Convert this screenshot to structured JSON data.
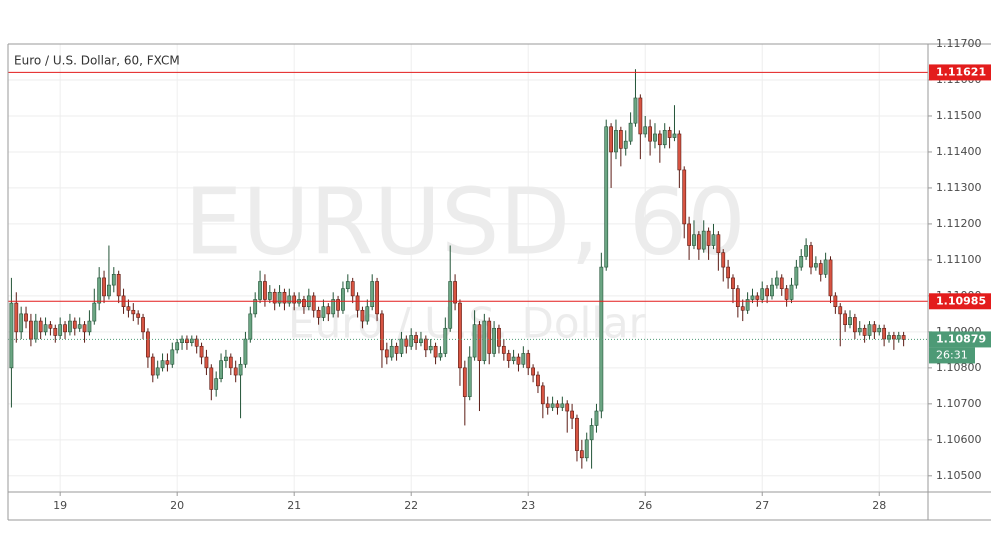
{
  "chart_data": {
    "type": "candlestick",
    "title": "Euro / U.S. Dollar, 60, FXCM",
    "watermark": {
      "symbol": "EURUSD, 60",
      "description": "Euro / U.S. Dollar"
    },
    "up_color": "#6ba583",
    "down_color": "#d75442",
    "xlim": [
      -10.7,
      178
    ],
    "ylim": [
      1.10455,
      1.117
    ],
    "xticks": [
      {
        "value": 0,
        "label": "19"
      },
      {
        "value": 24,
        "label": "20"
      },
      {
        "value": 48,
        "label": "21"
      },
      {
        "value": 72,
        "label": "22"
      },
      {
        "value": 96,
        "label": "23"
      },
      {
        "value": 120,
        "label": "26"
      },
      {
        "value": 144,
        "label": "27"
      },
      {
        "value": 168,
        "label": "28"
      }
    ],
    "yticks": [
      {
        "value": 1.117,
        "label": "1.11700"
      },
      {
        "value": 1.116,
        "label": "1.11600"
      },
      {
        "value": 1.115,
        "label": "1.11500"
      },
      {
        "value": 1.114,
        "label": "1.11400"
      },
      {
        "value": 1.113,
        "label": "1.11300"
      },
      {
        "value": 1.112,
        "label": "1.11200"
      },
      {
        "value": 1.111,
        "label": "1.11100"
      },
      {
        "value": 1.11,
        "label": "1.11000"
      },
      {
        "value": 1.109,
        "label": "1.10900"
      },
      {
        "value": 1.108,
        "label": "1.10800"
      },
      {
        "value": 1.107,
        "label": "1.10700"
      },
      {
        "value": 1.106,
        "label": "1.10600"
      },
      {
        "value": 1.105,
        "label": "1.10500"
      }
    ],
    "grid": true,
    "levels": [
      1.11621,
      1.10985
    ],
    "level_color": "#e31c1c",
    "last_price": 1.10879,
    "last_color": "#4d9a76",
    "countdown": "26:31",
    "x": [
      -10,
      -9,
      -8,
      -7,
      -6,
      -5,
      -4,
      -3,
      -2,
      -1,
      0,
      1,
      2,
      3,
      4,
      5,
      6,
      7,
      8,
      9,
      10,
      11,
      12,
      13,
      14,
      15,
      16,
      17,
      18,
      19,
      20,
      21,
      22,
      23,
      24,
      25,
      26,
      27,
      28,
      29,
      30,
      31,
      32,
      33,
      34,
      35,
      36,
      37,
      38,
      39,
      40,
      41,
      42,
      43,
      44,
      45,
      46,
      47,
      48,
      49,
      50,
      51,
      52,
      53,
      54,
      55,
      56,
      57,
      58,
      59,
      60,
      61,
      62,
      63,
      64,
      65,
      66,
      67,
      68,
      69,
      70,
      71,
      72,
      73,
      74,
      75,
      76,
      77,
      78,
      79,
      80,
      81,
      82,
      83,
      84,
      85,
      86,
      87,
      88,
      89,
      90,
      91,
      92,
      93,
      94,
      95,
      96,
      97,
      98,
      99,
      100,
      101,
      102,
      103,
      104,
      105,
      106,
      107,
      108,
      109,
      110,
      111,
      112,
      113,
      114,
      115,
      116,
      117,
      118,
      119,
      120,
      121,
      122,
      123,
      124,
      125,
      126,
      127,
      128,
      129,
      130,
      131,
      132,
      133,
      134,
      135,
      136,
      137,
      138,
      139,
      140,
      141,
      142,
      143,
      144,
      145,
      146,
      147,
      148,
      149,
      150,
      151,
      152,
      153,
      154,
      155,
      156,
      157,
      158,
      159,
      160,
      161,
      162,
      163,
      164,
      165,
      166,
      167,
      168,
      169,
      170,
      171,
      172,
      173
    ],
    "ohlc": [
      [
        1.108,
        1.1105,
        1.1069,
        1.1098
      ],
      [
        1.1098,
        1.1101,
        1.1087,
        1.109
      ],
      [
        1.109,
        1.1097,
        1.1088,
        1.1095
      ],
      [
        1.1095,
        1.1097,
        1.1091,
        1.1093
      ],
      [
        1.1093,
        1.1095,
        1.1086,
        1.1088
      ],
      [
        1.1088,
        1.1095,
        1.1087,
        1.1093
      ],
      [
        1.1093,
        1.1094,
        1.1088,
        1.109
      ],
      [
        1.109,
        1.1094,
        1.1089,
        1.1092
      ],
      [
        1.1092,
        1.1093,
        1.1089,
        1.1091
      ],
      [
        1.1091,
        1.1092,
        1.1087,
        1.1089
      ],
      [
        1.1089,
        1.1094,
        1.1088,
        1.1092
      ],
      [
        1.1092,
        1.1093,
        1.1088,
        1.109
      ],
      [
        1.109,
        1.1095,
        1.1089,
        1.1093
      ],
      [
        1.1093,
        1.1094,
        1.1089,
        1.1091
      ],
      [
        1.1091,
        1.1094,
        1.109,
        1.1092
      ],
      [
        1.1092,
        1.1093,
        1.1087,
        1.109
      ],
      [
        1.109,
        1.1096,
        1.1089,
        1.1093
      ],
      [
        1.1093,
        1.1102,
        1.1092,
        1.1098
      ],
      [
        1.1098,
        1.1108,
        1.1096,
        1.1105
      ],
      [
        1.1105,
        1.1107,
        1.1098,
        1.11
      ],
      [
        1.11,
        1.1114,
        1.1099,
        1.1103
      ],
      [
        1.1103,
        1.1108,
        1.1101,
        1.1106
      ],
      [
        1.1106,
        1.1107,
        1.1098,
        1.11
      ],
      [
        1.11,
        1.1102,
        1.1095,
        1.1097
      ],
      [
        1.1097,
        1.1099,
        1.1094,
        1.1096
      ],
      [
        1.1096,
        1.1098,
        1.1093,
        1.1095
      ],
      [
        1.1095,
        1.1096,
        1.1092,
        1.1094
      ],
      [
        1.1094,
        1.1095,
        1.1088,
        1.109
      ],
      [
        1.109,
        1.1091,
        1.108,
        1.1083
      ],
      [
        1.1083,
        1.1084,
        1.1076,
        1.1078
      ],
      [
        1.1078,
        1.1082,
        1.1077,
        1.108
      ],
      [
        1.108,
        1.1084,
        1.1079,
        1.1082
      ],
      [
        1.1082,
        1.1084,
        1.1079,
        1.1081
      ],
      [
        1.1081,
        1.1087,
        1.108,
        1.1085
      ],
      [
        1.1085,
        1.1088,
        1.1084,
        1.1087
      ],
      [
        1.1087,
        1.1089,
        1.1085,
        1.1088
      ],
      [
        1.1088,
        1.1089,
        1.1085,
        1.1087
      ],
      [
        1.1087,
        1.1089,
        1.1086,
        1.1088
      ],
      [
        1.1088,
        1.1089,
        1.1084,
        1.1086
      ],
      [
        1.1086,
        1.1087,
        1.1081,
        1.1083
      ],
      [
        1.1083,
        1.1085,
        1.1078,
        1.108
      ],
      [
        1.108,
        1.1081,
        1.1071,
        1.1074
      ],
      [
        1.1074,
        1.1079,
        1.1072,
        1.1077
      ],
      [
        1.1077,
        1.1084,
        1.1076,
        1.1082
      ],
      [
        1.1082,
        1.1085,
        1.108,
        1.1083
      ],
      [
        1.1083,
        1.1084,
        1.1078,
        1.108
      ],
      [
        1.108,
        1.1082,
        1.1076,
        1.1078
      ],
      [
        1.1078,
        1.1083,
        1.1066,
        1.1081
      ],
      [
        1.1081,
        1.109,
        1.108,
        1.1088
      ],
      [
        1.1088,
        1.1097,
        1.1087,
        1.1095
      ],
      [
        1.1095,
        1.1101,
        1.1094,
        1.1099
      ],
      [
        1.1099,
        1.1107,
        1.1098,
        1.1104
      ],
      [
        1.1104,
        1.1106,
        1.1097,
        1.1099
      ],
      [
        1.1099,
        1.1103,
        1.1098,
        1.1101
      ],
      [
        1.1101,
        1.1102,
        1.1096,
        1.1098
      ],
      [
        1.1098,
        1.1103,
        1.1097,
        1.1101
      ],
      [
        1.1101,
        1.1102,
        1.1096,
        1.1098
      ],
      [
        1.1098,
        1.1102,
        1.1097,
        1.11
      ],
      [
        1.11,
        1.1101,
        1.1096,
        1.1098
      ],
      [
        1.1098,
        1.1101,
        1.1097,
        1.1099
      ],
      [
        1.1099,
        1.11,
        1.1095,
        1.1097
      ],
      [
        1.1097,
        1.1102,
        1.1096,
        1.11
      ],
      [
        1.11,
        1.1101,
        1.1094,
        1.1096
      ],
      [
        1.1096,
        1.1097,
        1.1092,
        1.1094
      ],
      [
        1.1094,
        1.1099,
        1.1093,
        1.1097
      ],
      [
        1.1097,
        1.1098,
        1.1093,
        1.1095
      ],
      [
        1.1095,
        1.1101,
        1.1094,
        1.1099
      ],
      [
        1.1099,
        1.11,
        1.1094,
        1.1096
      ],
      [
        1.1096,
        1.1104,
        1.1095,
        1.1102
      ],
      [
        1.1102,
        1.1106,
        1.1101,
        1.1104
      ],
      [
        1.1104,
        1.1105,
        1.1098,
        1.11
      ],
      [
        1.11,
        1.1101,
        1.1094,
        1.1096
      ],
      [
        1.1096,
        1.1097,
        1.1091,
        1.1093
      ],
      [
        1.1093,
        1.1099,
        1.1092,
        1.1097
      ],
      [
        1.1097,
        1.1106,
        1.1096,
        1.1104
      ],
      [
        1.1104,
        1.1105,
        1.1093,
        1.1095
      ],
      [
        1.1095,
        1.1096,
        1.108,
        1.1085
      ],
      [
        1.1085,
        1.1087,
        1.1081,
        1.1083
      ],
      [
        1.1083,
        1.1088,
        1.1082,
        1.1086
      ],
      [
        1.1086,
        1.1087,
        1.1082,
        1.1084
      ],
      [
        1.1084,
        1.109,
        1.1083,
        1.1088
      ],
      [
        1.1088,
        1.1089,
        1.1084,
        1.1086
      ],
      [
        1.1086,
        1.1091,
        1.1085,
        1.1089
      ],
      [
        1.1089,
        1.109,
        1.1085,
        1.1087
      ],
      [
        1.1087,
        1.109,
        1.1086,
        1.1088
      ],
      [
        1.1088,
        1.1089,
        1.1083,
        1.1085
      ],
      [
        1.1085,
        1.1088,
        1.1084,
        1.1086
      ],
      [
        1.1086,
        1.1087,
        1.1081,
        1.1083
      ],
      [
        1.1083,
        1.1086,
        1.1082,
        1.1084
      ],
      [
        1.1084,
        1.1094,
        1.1083,
        1.1091
      ],
      [
        1.1091,
        1.1114,
        1.109,
        1.1104
      ],
      [
        1.1104,
        1.1106,
        1.1096,
        1.1098
      ],
      [
        1.1098,
        1.1099,
        1.1075,
        1.108
      ],
      [
        1.108,
        1.1082,
        1.1064,
        1.1072
      ],
      [
        1.1072,
        1.1086,
        1.1071,
        1.1083
      ],
      [
        1.1083,
        1.1096,
        1.1082,
        1.1092
      ],
      [
        1.1092,
        1.1093,
        1.1068,
        1.1082
      ],
      [
        1.1082,
        1.1095,
        1.1081,
        1.1093
      ],
      [
        1.1093,
        1.1094,
        1.1081,
        1.1084
      ],
      [
        1.1084,
        1.1093,
        1.1083,
        1.1091
      ],
      [
        1.1091,
        1.1092,
        1.1084,
        1.1086
      ],
      [
        1.1086,
        1.1088,
        1.1082,
        1.1084
      ],
      [
        1.1084,
        1.1085,
        1.108,
        1.1082
      ],
      [
        1.1082,
        1.1085,
        1.1081,
        1.1083
      ],
      [
        1.1083,
        1.1084,
        1.1079,
        1.1081
      ],
      [
        1.1081,
        1.1086,
        1.108,
        1.1084
      ],
      [
        1.1084,
        1.1085,
        1.1078,
        1.108
      ],
      [
        1.108,
        1.1081,
        1.1076,
        1.1078
      ],
      [
        1.1078,
        1.1079,
        1.1073,
        1.1075
      ],
      [
        1.1075,
        1.1076,
        1.1066,
        1.107
      ],
      [
        1.107,
        1.1072,
        1.1067,
        1.1069
      ],
      [
        1.1069,
        1.1072,
        1.1068,
        1.107
      ],
      [
        1.107,
        1.1071,
        1.1067,
        1.1069
      ],
      [
        1.1069,
        1.1072,
        1.1068,
        1.107
      ],
      [
        1.107,
        1.1071,
        1.1062,
        1.1068
      ],
      [
        1.1068,
        1.107,
        1.1063,
        1.1066
      ],
      [
        1.1066,
        1.1067,
        1.1054,
        1.1057
      ],
      [
        1.1057,
        1.106,
        1.1052,
        1.1055
      ],
      [
        1.1055,
        1.1062,
        1.1054,
        1.106
      ],
      [
        1.106,
        1.1066,
        1.1052,
        1.1064
      ],
      [
        1.1064,
        1.107,
        1.1062,
        1.1068
      ],
      [
        1.1068,
        1.1112,
        1.1066,
        1.1108
      ],
      [
        1.1108,
        1.1149,
        1.1107,
        1.1147
      ],
      [
        1.1147,
        1.1148,
        1.113,
        1.114
      ],
      [
        1.114,
        1.1149,
        1.1138,
        1.1146
      ],
      [
        1.1146,
        1.1147,
        1.1136,
        1.1141
      ],
      [
        1.1141,
        1.1146,
        1.1139,
        1.1143
      ],
      [
        1.1143,
        1.1151,
        1.1142,
        1.1148
      ],
      [
        1.1148,
        1.1163,
        1.1147,
        1.1155
      ],
      [
        1.1155,
        1.1156,
        1.1138,
        1.1145
      ],
      [
        1.1145,
        1.115,
        1.1144,
        1.1147
      ],
      [
        1.1147,
        1.1149,
        1.1139,
        1.1143
      ],
      [
        1.1143,
        1.1148,
        1.1141,
        1.1145
      ],
      [
        1.1145,
        1.1146,
        1.1137,
        1.1142
      ],
      [
        1.1142,
        1.1148,
        1.1141,
        1.1146
      ],
      [
        1.1146,
        1.1147,
        1.1141,
        1.1144
      ],
      [
        1.1144,
        1.1153,
        1.1143,
        1.1145
      ],
      [
        1.1145,
        1.1146,
        1.113,
        1.1135
      ],
      [
        1.1135,
        1.1136,
        1.1116,
        1.112
      ],
      [
        1.112,
        1.1122,
        1.111,
        1.1114
      ],
      [
        1.1114,
        1.1121,
        1.1113,
        1.1117
      ],
      [
        1.1117,
        1.1118,
        1.111,
        1.1113
      ],
      [
        1.1113,
        1.1121,
        1.1112,
        1.1118
      ],
      [
        1.1118,
        1.1119,
        1.111,
        1.1114
      ],
      [
        1.1114,
        1.112,
        1.1113,
        1.1117
      ],
      [
        1.1117,
        1.1118,
        1.1107,
        1.1112
      ],
      [
        1.1112,
        1.1113,
        1.1104,
        1.1108
      ],
      [
        1.1108,
        1.111,
        1.1102,
        1.1105
      ],
      [
        1.1105,
        1.1106,
        1.1098,
        1.1102
      ],
      [
        1.1102,
        1.1103,
        1.1094,
        1.1097
      ],
      [
        1.1097,
        1.1099,
        1.1093,
        1.1096
      ],
      [
        1.1096,
        1.1101,
        1.1095,
        1.1099
      ],
      [
        1.1099,
        1.1102,
        1.1098,
        1.11
      ],
      [
        1.11,
        1.1101,
        1.1097,
        1.1099
      ],
      [
        1.1099,
        1.1104,
        1.1098,
        1.1102
      ],
      [
        1.1102,
        1.1103,
        1.1098,
        1.11
      ],
      [
        1.11,
        1.1105,
        1.1099,
        1.1103
      ],
      [
        1.1103,
        1.1107,
        1.1102,
        1.1105
      ],
      [
        1.1105,
        1.1106,
        1.11,
        1.1102
      ],
      [
        1.1102,
        1.1103,
        1.1097,
        1.1099
      ],
      [
        1.1099,
        1.1105,
        1.1098,
        1.1103
      ],
      [
        1.1103,
        1.111,
        1.1102,
        1.1108
      ],
      [
        1.1108,
        1.1113,
        1.1107,
        1.1111
      ],
      [
        1.1111,
        1.1116,
        1.111,
        1.1114
      ],
      [
        1.1114,
        1.1115,
        1.1106,
        1.1108
      ],
      [
        1.1108,
        1.1111,
        1.1107,
        1.1109
      ],
      [
        1.1109,
        1.111,
        1.1104,
        1.1106
      ],
      [
        1.1106,
        1.1112,
        1.1105,
        1.111
      ],
      [
        1.111,
        1.1111,
        1.1098,
        1.11
      ],
      [
        1.11,
        1.1101,
        1.1095,
        1.1097
      ],
      [
        1.1097,
        1.1098,
        1.1086,
        1.1095
      ],
      [
        1.1095,
        1.1096,
        1.109,
        1.1092
      ],
      [
        1.1092,
        1.1096,
        1.1091,
        1.1094
      ],
      [
        1.1094,
        1.1095,
        1.1088,
        1.109
      ],
      [
        1.109,
        1.1093,
        1.1089,
        1.1091
      ],
      [
        1.1091,
        1.1092,
        1.1087,
        1.1089
      ],
      [
        1.1089,
        1.1093,
        1.1088,
        1.1092
      ],
      [
        1.1092,
        1.1093,
        1.1088,
        1.109
      ],
      [
        1.109,
        1.1092,
        1.1089,
        1.1091
      ],
      [
        1.1091,
        1.1092,
        1.1086,
        1.1088
      ],
      [
        1.1088,
        1.109,
        1.1087,
        1.1089
      ],
      [
        1.1089,
        1.109,
        1.1085,
        1.1088
      ],
      [
        1.1088,
        1.109,
        1.1087,
        1.1089
      ],
      [
        1.1089,
        1.109,
        1.1086,
        1.10879
      ]
    ]
  }
}
